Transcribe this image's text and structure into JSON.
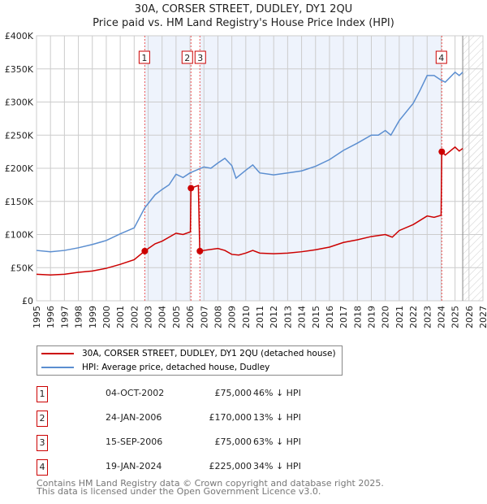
{
  "chart_data": {
    "type": "line",
    "title": "30A, CORSER STREET, DUDLEY, DY1 2QU",
    "subtitle": "Price paid vs. HM Land Registry's House Price Index (HPI)",
    "xlim": [
      1995,
      2027
    ],
    "ylim": [
      0,
      400000
    ],
    "x_ticks": [
      "1995",
      "1996",
      "1997",
      "1998",
      "1999",
      "2000",
      "2001",
      "2002",
      "2003",
      "2004",
      "2005",
      "2006",
      "2007",
      "2008",
      "2009",
      "2010",
      "2011",
      "2012",
      "2013",
      "2014",
      "2015",
      "2016",
      "2017",
      "2018",
      "2019",
      "2020",
      "2021",
      "2022",
      "2023",
      "2024",
      "2025",
      "2026",
      "2027"
    ],
    "y_ticks": [
      {
        "v": 0,
        "l": "£0"
      },
      {
        "v": 50000,
        "l": "£50K"
      },
      {
        "v": 100000,
        "l": "£100K"
      },
      {
        "v": 150000,
        "l": "£150K"
      },
      {
        "v": 200000,
        "l": "£200K"
      },
      {
        "v": 250000,
        "l": "£250K"
      },
      {
        "v": 300000,
        "l": "£300K"
      },
      {
        "v": 350000,
        "l": "£350K"
      },
      {
        "v": 400000,
        "l": "£400K"
      }
    ],
    "grid": true,
    "forecast_start": 2025.55,
    "series": [
      {
        "name": "30A, CORSER STREET, DUDLEY, DY1 2QU (detached house)",
        "color": "#cc0000",
        "x": [
          1995,
          1996,
          1997,
          1998,
          1999,
          2000,
          2001,
          2002,
          2002.75,
          2003.5,
          2004,
          2005,
          2005.5,
          2006.03,
          2006.07,
          2006.6,
          2006.7,
          2007,
          2008,
          2008.5,
          2009,
          2009.5,
          2010,
          2010.5,
          2011,
          2012,
          2013,
          2014,
          2015,
          2016,
          2017,
          2018,
          2019,
          2020,
          2020.5,
          2021,
          2022,
          2023,
          2023.5,
          2024.0,
          2024.05,
          2024.3,
          2025,
          2025.3,
          2025.55
        ],
        "y": [
          40000,
          39000,
          40000,
          43000,
          45000,
          49000,
          55000,
          62000,
          75000,
          86000,
          90000,
          102000,
          100000,
          104000,
          170000,
          174000,
          75000,
          76000,
          79000,
          76000,
          70000,
          69000,
          72000,
          76000,
          72000,
          71000,
          72000,
          74000,
          77000,
          81000,
          88000,
          92000,
          97000,
          100000,
          96000,
          106000,
          115000,
          128000,
          126000,
          129000,
          225000,
          220000,
          232000,
          226000,
          230000
        ]
      },
      {
        "name": "HPI: Average price, detached house, Dudley",
        "color": "#5b8ed0",
        "x": [
          1995,
          1996,
          1997,
          1998,
          1999,
          2000,
          2001,
          2002,
          2002.75,
          2003.5,
          2004,
          2004.5,
          2005,
          2005.5,
          2006,
          2007,
          2007.5,
          2008,
          2008.5,
          2009,
          2009.3,
          2010,
          2010.5,
          2011,
          2012,
          2013,
          2014,
          2015,
          2016,
          2017,
          2018,
          2019,
          2019.5,
          2020,
          2020.4,
          2021,
          2022,
          2022.5,
          2023,
          2023.5,
          2024,
          2024.3,
          2025,
          2025.3,
          2025.55
        ],
        "y": [
          76000,
          74000,
          76000,
          80000,
          85000,
          91000,
          101000,
          110000,
          140000,
          160000,
          168000,
          175000,
          191000,
          186000,
          193000,
          202000,
          200000,
          208000,
          215000,
          204000,
          185000,
          197000,
          205000,
          193000,
          190000,
          193000,
          196000,
          203000,
          213000,
          227000,
          238000,
          250000,
          250000,
          257000,
          250000,
          272000,
          298000,
          318000,
          340000,
          340000,
          333000,
          330000,
          345000,
          340000,
          345000
        ]
      }
    ],
    "sales": [
      {
        "n": "1",
        "x": 2002.76,
        "price": 75000,
        "date": "04-OCT-2002",
        "price_label": "£75,000",
        "hpi": "46% ↓ HPI"
      },
      {
        "n": "2",
        "x": 2006.07,
        "price": 170000,
        "date": "24-JAN-2006",
        "price_label": "£170,000",
        "hpi": "13% ↓ HPI"
      },
      {
        "n": "3",
        "x": 2006.71,
        "price": 75000,
        "date": "15-SEP-2006",
        "price_label": "£75,000",
        "hpi": "63% ↓ HPI"
      },
      {
        "n": "4",
        "x": 2024.05,
        "price": 225000,
        "date": "19-JAN-2024",
        "price_label": "£225,000",
        "hpi": "34% ↓ HPI"
      }
    ]
  },
  "footer": {
    "line1": "Contains HM Land Registry data © Crown copyright and database right 2025.",
    "line2": "This data is licensed under the Open Government Licence v3.0."
  }
}
